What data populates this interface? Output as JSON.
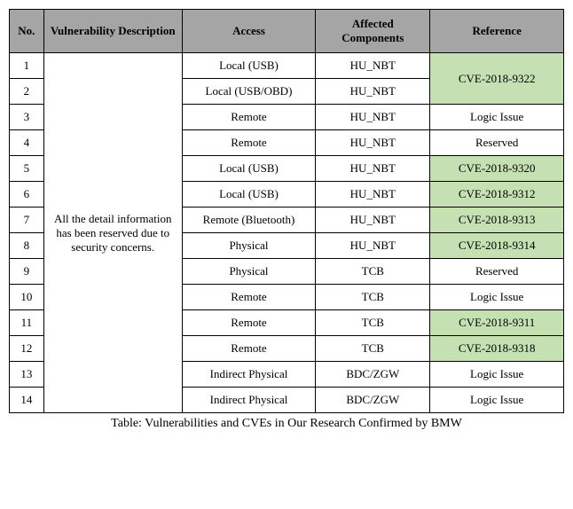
{
  "headers": {
    "no": "No.",
    "desc": "Vulnerability Description",
    "access": "Access",
    "comp": "Affected Components",
    "ref": "Reference"
  },
  "desc_merged": "All the detail information has been reserved due to security concerns.",
  "rows": [
    {
      "no": "1",
      "access": "Local (USB)",
      "comp": "HU_NBT",
      "ref": "CVE-2018-9322",
      "hl": true,
      "ref_merge": 2
    },
    {
      "no": "2",
      "access": "Local (USB/OBD)",
      "comp": "HU_NBT",
      "ref": null,
      "hl": false,
      "ref_merge": 0
    },
    {
      "no": "3",
      "access": "Remote",
      "comp": "HU_NBT",
      "ref": "Logic Issue",
      "hl": false,
      "ref_merge": 1
    },
    {
      "no": "4",
      "access": "Remote",
      "comp": "HU_NBT",
      "ref": "Reserved",
      "hl": false,
      "ref_merge": 1
    },
    {
      "no": "5",
      "access": "Local (USB)",
      "comp": "HU_NBT",
      "ref": "CVE-2018-9320",
      "hl": true,
      "ref_merge": 1
    },
    {
      "no": "6",
      "access": "Local (USB)",
      "comp": "HU_NBT",
      "ref": "CVE-2018-9312",
      "hl": true,
      "ref_merge": 1
    },
    {
      "no": "7",
      "access": "Remote (Bluetooth)",
      "comp": "HU_NBT",
      "ref": "CVE-2018-9313",
      "hl": true,
      "ref_merge": 1
    },
    {
      "no": "8",
      "access": "Physical",
      "comp": "HU_NBT",
      "ref": "CVE-2018-9314",
      "hl": true,
      "ref_merge": 1
    },
    {
      "no": "9",
      "access": "Physical",
      "comp": "TCB",
      "ref": "Reserved",
      "hl": false,
      "ref_merge": 1
    },
    {
      "no": "10",
      "access": "Remote",
      "comp": "TCB",
      "ref": "Logic Issue",
      "hl": false,
      "ref_merge": 1
    },
    {
      "no": "11",
      "access": "Remote",
      "comp": "TCB",
      "ref": "CVE-2018-9311",
      "hl": true,
      "ref_merge": 1
    },
    {
      "no": "12",
      "access": "Remote",
      "comp": "TCB",
      "ref": "CVE-2018-9318",
      "hl": true,
      "ref_merge": 1
    },
    {
      "no": "13",
      "access": "Indirect Physical",
      "comp": "BDC/ZGW",
      "ref": "Logic Issue",
      "hl": false,
      "ref_merge": 1
    },
    {
      "no": "14",
      "access": "Indirect Physical",
      "comp": "BDC/ZGW",
      "ref": "Logic Issue",
      "hl": false,
      "ref_merge": 1
    }
  ],
  "caption": "Table: Vulnerabilities and CVEs in Our Research Confirmed by BMW",
  "colors": {
    "header_bg": "#a5a5a5",
    "highlight_bg": "#c5e0b3",
    "border": "#000000",
    "page_bg": "#ffffff"
  }
}
